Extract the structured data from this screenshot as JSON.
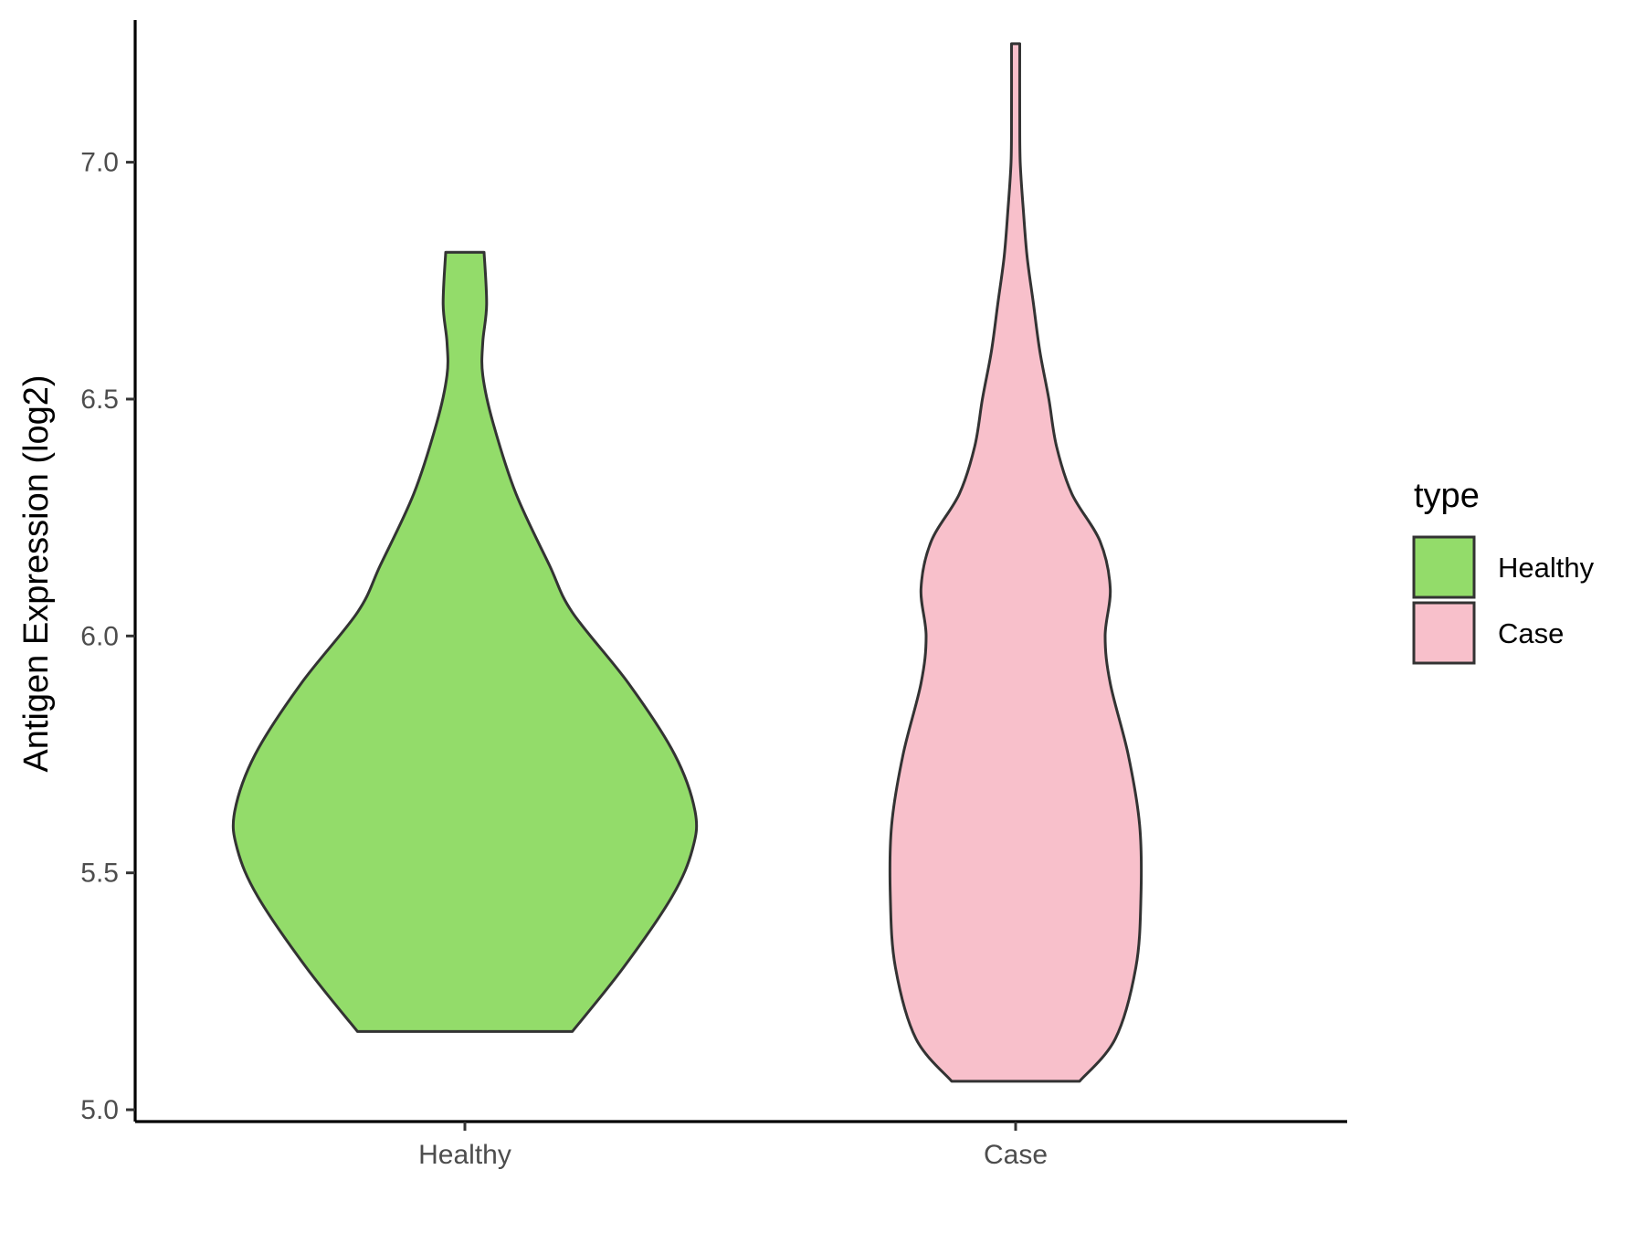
{
  "chart_data": {
    "type": "violin",
    "ylabel": "Antigen Expression (log2)",
    "xlabel": "",
    "ylim": [
      4.975,
      7.3
    ],
    "yticks": [
      5.0,
      5.5,
      6.0,
      6.5,
      7.0
    ],
    "ytick_labels": [
      "5.0",
      "5.5",
      "6.0",
      "6.5",
      "7.0"
    ],
    "categories": [
      "Healthy",
      "Case"
    ],
    "grid": false,
    "legend": {
      "title": "type",
      "placement": "right",
      "entries": [
        {
          "label": "Healthy",
          "color": "#93dc6a"
        },
        {
          "label": "Case",
          "color": "#f8c0cb"
        }
      ]
    },
    "series": [
      {
        "category": "Healthy",
        "color": "#93dc6a",
        "min": 5.165,
        "max": 6.81,
        "density_profile": [
          [
            5.165,
            0.42
          ],
          [
            5.3,
            0.62
          ],
          [
            5.45,
            0.81
          ],
          [
            5.55,
            0.89
          ],
          [
            5.63,
            0.9
          ],
          [
            5.75,
            0.82
          ],
          [
            5.9,
            0.64
          ],
          [
            6.05,
            0.42
          ],
          [
            6.15,
            0.33
          ],
          [
            6.3,
            0.2
          ],
          [
            6.45,
            0.11
          ],
          [
            6.55,
            0.07
          ],
          [
            6.62,
            0.07
          ],
          [
            6.7,
            0.085
          ],
          [
            6.81,
            0.075
          ]
        ]
      },
      {
        "category": "Case",
        "color": "#f8c0cb",
        "min": 5.06,
        "max": 7.25,
        "density_profile": [
          [
            5.06,
            0.25
          ],
          [
            5.15,
            0.39
          ],
          [
            5.3,
            0.47
          ],
          [
            5.45,
            0.49
          ],
          [
            5.6,
            0.485
          ],
          [
            5.75,
            0.44
          ],
          [
            5.9,
            0.37
          ],
          [
            6.0,
            0.35
          ],
          [
            6.1,
            0.37
          ],
          [
            6.2,
            0.33
          ],
          [
            6.3,
            0.22
          ],
          [
            6.4,
            0.16
          ],
          [
            6.5,
            0.13
          ],
          [
            6.6,
            0.095
          ],
          [
            6.7,
            0.07
          ],
          [
            6.8,
            0.045
          ],
          [
            6.9,
            0.03
          ],
          [
            7.0,
            0.018
          ],
          [
            7.1,
            0.016
          ],
          [
            7.25,
            0.016
          ]
        ]
      }
    ]
  }
}
